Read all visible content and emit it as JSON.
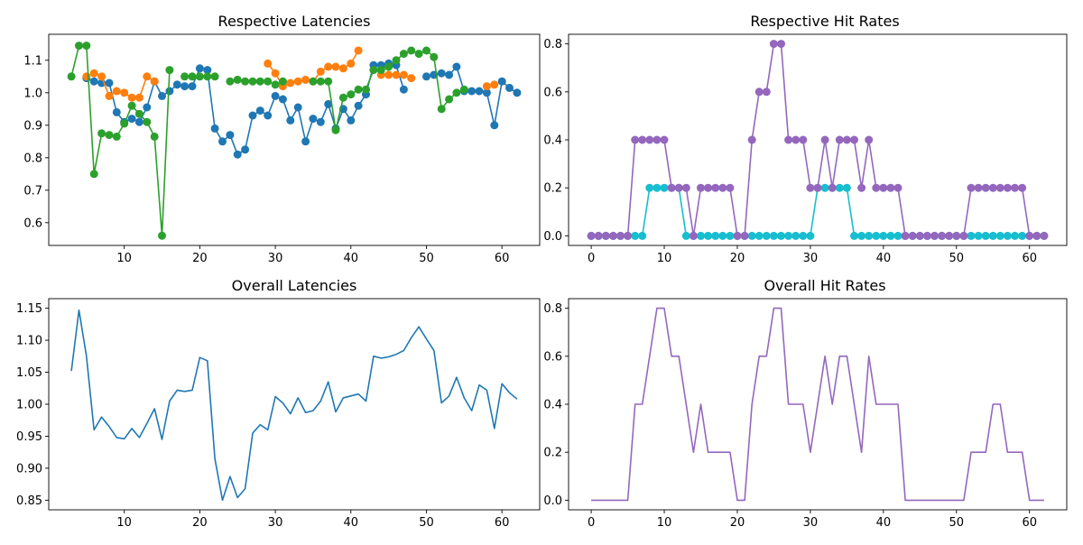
{
  "chart_data": [
    {
      "id": "respective-latencies",
      "type": "line",
      "title": "Respective Latencies",
      "xlim": [
        0,
        65
      ],
      "ylim": [
        0.53,
        1.18
      ],
      "xticks": [
        10,
        20,
        30,
        40,
        50,
        60
      ],
      "yticks": [
        0.6,
        0.7,
        0.8,
        0.9,
        1.0,
        1.1
      ],
      "ytick_labels": [
        "0.6",
        "0.7",
        "0.8",
        "0.9",
        "1.0",
        "1.1"
      ],
      "series": [
        {
          "color": "#1f77b4",
          "markers": true,
          "points": [
            [
              5,
              1.045
            ],
            [
              6,
              1.035
            ],
            [
              7,
              1.03
            ],
            [
              8,
              1.03
            ],
            [
              9,
              0.94
            ],
            [
              10,
              0.91
            ],
            [
              11,
              0.92
            ],
            [
              12,
              0.91
            ],
            [
              13,
              0.955
            ],
            [
              14,
              1.035
            ],
            [
              15,
              0.99
            ],
            [
              16,
              1.005
            ],
            [
              17,
              1.025
            ],
            [
              18,
              1.02
            ],
            [
              19,
              1.02
            ],
            [
              20,
              1.075
            ],
            [
              21,
              1.07
            ],
            [
              22,
              0.89
            ],
            [
              23,
              0.85
            ],
            [
              24,
              0.87
            ],
            [
              25,
              0.81
            ],
            [
              26,
              0.825
            ],
            [
              27,
              0.93
            ],
            [
              28,
              0.945
            ],
            [
              29,
              0.93
            ],
            [
              30,
              0.99
            ],
            [
              31,
              0.98
            ],
            [
              32,
              0.915
            ],
            [
              33,
              0.955
            ],
            [
              34,
              0.85
            ],
            [
              35,
              0.92
            ],
            [
              36,
              0.91
            ],
            [
              37,
              0.965
            ],
            [
              38,
              0.89
            ],
            [
              39,
              0.95
            ],
            [
              40,
              0.915
            ],
            [
              41,
              0.96
            ],
            [
              42,
              0.995
            ],
            [
              43,
              1.085
            ],
            [
              44,
              1.085
            ],
            [
              45,
              1.09
            ],
            [
              46,
              1.085
            ],
            [
              47,
              1.01
            ],
            null,
            [
              50,
              1.05
            ],
            [
              51,
              1.055
            ],
            [
              52,
              1.06
            ],
            [
              53,
              1.055
            ],
            [
              54,
              1.08
            ],
            [
              55,
              1.005
            ],
            [
              56,
              1.005
            ],
            [
              57,
              1.005
            ],
            [
              58,
              1.0
            ],
            [
              59,
              0.9
            ],
            [
              60,
              1.035
            ],
            [
              61,
              1.015
            ],
            [
              62,
              1.0
            ]
          ]
        },
        {
          "color": "#ff7f0e",
          "markers": true,
          "points": [
            [
              5,
              1.05
            ],
            [
              6,
              1.06
            ],
            [
              7,
              1.05
            ],
            [
              8,
              0.99
            ],
            [
              9,
              1.005
            ],
            [
              10,
              1.0
            ],
            [
              11,
              0.985
            ],
            [
              12,
              0.985
            ],
            [
              13,
              1.05
            ],
            [
              14,
              1.035
            ],
            null,
            [
              29,
              1.09
            ],
            [
              30,
              1.06
            ],
            [
              31,
              1.02
            ],
            [
              32,
              1.03
            ],
            [
              33,
              1.035
            ],
            [
              34,
              1.04
            ],
            [
              35,
              1.035
            ],
            [
              36,
              1.065
            ],
            [
              37,
              1.08
            ],
            [
              38,
              1.08
            ],
            [
              39,
              1.075
            ],
            [
              40,
              1.09
            ],
            [
              41,
              1.13
            ],
            null,
            [
              44,
              1.055
            ],
            [
              45,
              1.055
            ],
            [
              46,
              1.055
            ],
            [
              47,
              1.055
            ],
            [
              48,
              1.045
            ],
            null,
            [
              58,
              1.02
            ],
            [
              59,
              1.025
            ]
          ]
        },
        {
          "color": "#2ca02c",
          "markers": true,
          "points": [
            [
              3,
              1.05
            ],
            [
              4,
              1.145
            ],
            [
              5,
              1.145
            ],
            [
              6,
              0.75
            ],
            [
              7,
              0.875
            ],
            [
              8,
              0.87
            ],
            [
              9,
              0.865
            ],
            [
              10,
              0.905
            ],
            [
              11,
              0.96
            ],
            [
              12,
              0.935
            ],
            [
              13,
              0.91
            ],
            [
              14,
              0.865
            ],
            [
              15,
              0.56
            ],
            [
              16,
              1.07
            ],
            null,
            [
              18,
              1.05
            ],
            [
              19,
              1.05
            ],
            [
              20,
              1.05
            ],
            [
              21,
              1.05
            ],
            [
              22,
              1.05
            ],
            null,
            [
              24,
              1.035
            ],
            [
              25,
              1.04
            ],
            [
              26,
              1.035
            ],
            [
              27,
              1.035
            ],
            [
              28,
              1.035
            ],
            [
              29,
              1.035
            ],
            [
              30,
              1.025
            ],
            [
              31,
              1.035
            ],
            null,
            [
              35,
              1.035
            ],
            [
              36,
              1.035
            ],
            [
              37,
              1.035
            ],
            [
              38,
              0.885
            ],
            [
              39,
              0.985
            ],
            [
              40,
              0.995
            ],
            [
              41,
              1.01
            ],
            [
              42,
              1.01
            ],
            [
              43,
              1.07
            ],
            [
              44,
              1.07
            ],
            [
              45,
              1.08
            ],
            [
              46,
              1.1
            ],
            [
              47,
              1.12
            ],
            [
              48,
              1.13
            ],
            [
              49,
              1.12
            ],
            [
              50,
              1.13
            ],
            [
              51,
              1.11
            ],
            [
              52,
              0.95
            ],
            [
              53,
              0.98
            ],
            [
              54,
              1.0
            ],
            [
              55,
              1.01
            ]
          ]
        }
      ]
    },
    {
      "id": "respective-hit-rates",
      "type": "line",
      "title": "Respective Hit Rates",
      "xlim": [
        -3.1,
        65.1
      ],
      "ylim": [
        -0.04,
        0.84
      ],
      "xticks": [
        0,
        10,
        20,
        30,
        40,
        50,
        60
      ],
      "yticks": [
        0.0,
        0.2,
        0.4,
        0.6,
        0.8
      ],
      "ytick_labels": [
        "0.0",
        "0.2",
        "0.4",
        "0.6",
        "0.8"
      ],
      "series": [
        {
          "color": "#17becf",
          "markers": true,
          "values": [
            0,
            0,
            0,
            0,
            0,
            0,
            0,
            0,
            0.2,
            0.2,
            0.2,
            0.2,
            0.2,
            0,
            0,
            0,
            0,
            0,
            0,
            0,
            0,
            0,
            0,
            0,
            0,
            0,
            0,
            0,
            0,
            0,
            0,
            0.2,
            0.2,
            0.2,
            0.2,
            0.2,
            0,
            0,
            0,
            0,
            0,
            0,
            0,
            0,
            0,
            0,
            0,
            0,
            0,
            0,
            0,
            0,
            0,
            0,
            0,
            0,
            0,
            0,
            0,
            0,
            0,
            0,
            0
          ]
        },
        {
          "color": "#9467bd",
          "markers": true,
          "values": [
            0,
            0,
            0,
            0,
            0,
            0,
            0.4,
            0.4,
            0.4,
            0.4,
            0.4,
            0.2,
            0.2,
            0.2,
            0,
            0.2,
            0.2,
            0.2,
            0.2,
            0.2,
            0,
            0,
            0.4,
            0.6,
            0.6,
            0.8,
            0.8,
            0.4,
            0.4,
            0.4,
            0.2,
            0.2,
            0.4,
            0.2,
            0.4,
            0.4,
            0.4,
            0.2,
            0.4,
            0.2,
            0.2,
            0.2,
            0.2,
            0,
            0,
            0,
            0,
            0,
            0,
            0,
            0,
            0,
            0.2,
            0.2,
            0.2,
            0.2,
            0.2,
            0.2,
            0.2,
            0.2,
            0,
            0,
            0
          ]
        }
      ]
    },
    {
      "id": "overall-latencies",
      "type": "line",
      "title": "Overall Latencies",
      "xlim": [
        0,
        65
      ],
      "ylim": [
        0.835,
        1.165
      ],
      "xticks": [
        10,
        20,
        30,
        40,
        50,
        60
      ],
      "yticks": [
        0.85,
        0.9,
        0.95,
        1.0,
        1.05,
        1.1,
        1.15
      ],
      "ytick_labels": [
        "0.85",
        "0.90",
        "0.95",
        "1.00",
        "1.05",
        "1.10",
        "1.15"
      ],
      "series": [
        {
          "color": "#1f77b4",
          "markers": false,
          "points": [
            [
              3,
              1.052
            ],
            [
              4,
              1.147
            ],
            [
              5,
              1.075
            ],
            [
              6,
              0.96
            ],
            [
              7,
              0.98
            ],
            [
              8,
              0.965
            ],
            [
              9,
              0.948
            ],
            [
              10,
              0.946
            ],
            [
              11,
              0.962
            ],
            [
              12,
              0.948
            ],
            [
              13,
              0.97
            ],
            [
              14,
              0.993
            ],
            [
              15,
              0.945
            ],
            [
              16,
              1.005
            ],
            [
              17,
              1.022
            ],
            [
              18,
              1.02
            ],
            [
              19,
              1.022
            ],
            [
              20,
              1.073
            ],
            [
              21,
              1.068
            ],
            [
              22,
              0.915
            ],
            [
              23,
              0.85
            ],
            [
              24,
              0.887
            ],
            [
              25,
              0.854
            ],
            [
              26,
              0.868
            ],
            [
              27,
              0.955
            ],
            [
              28,
              0.968
            ],
            [
              29,
              0.96
            ],
            [
              30,
              1.012
            ],
            [
              31,
              1.002
            ],
            [
              32,
              0.985
            ],
            [
              33,
              1.01
            ],
            [
              34,
              0.987
            ],
            [
              35,
              0.99
            ],
            [
              36,
              1.005
            ],
            [
              37,
              1.035
            ],
            [
              38,
              0.988
            ],
            [
              39,
              1.01
            ],
            [
              40,
              1.013
            ],
            [
              41,
              1.016
            ],
            [
              42,
              1.005
            ],
            [
              43,
              1.075
            ],
            [
              44,
              1.072
            ],
            [
              45,
              1.074
            ],
            [
              46,
              1.078
            ],
            [
              47,
              1.084
            ],
            [
              48,
              1.104
            ],
            [
              49,
              1.121
            ],
            [
              50,
              1.102
            ],
            [
              51,
              1.084
            ],
            [
              52,
              1.002
            ],
            [
              53,
              1.013
            ],
            [
              54,
              1.042
            ],
            [
              55,
              1.01
            ],
            [
              56,
              0.99
            ],
            [
              57,
              1.03
            ],
            [
              58,
              1.022
            ],
            [
              59,
              0.962
            ],
            [
              60,
              1.032
            ],
            [
              61,
              1.018
            ],
            [
              62,
              1.008
            ]
          ]
        }
      ]
    },
    {
      "id": "overall-hit-rates",
      "type": "line",
      "title": "Overall Hit Rates",
      "xlim": [
        -3.1,
        65.1
      ],
      "ylim": [
        -0.04,
        0.84
      ],
      "xticks": [
        0,
        10,
        20,
        30,
        40,
        50,
        60
      ],
      "yticks": [
        0.0,
        0.2,
        0.4,
        0.6,
        0.8
      ],
      "ytick_labels": [
        "0.0",
        "0.2",
        "0.4",
        "0.6",
        "0.8"
      ],
      "series": [
        {
          "color": "#9467bd",
          "markers": false,
          "values": [
            0,
            0,
            0,
            0,
            0,
            0,
            0.4,
            0.4,
            0.6,
            0.8,
            0.8,
            0.6,
            0.6,
            0.4,
            0.2,
            0.4,
            0.2,
            0.2,
            0.2,
            0.2,
            0,
            0,
            0.4,
            0.6,
            0.6,
            0.8,
            0.8,
            0.4,
            0.4,
            0.4,
            0.2,
            0.4,
            0.6,
            0.4,
            0.6,
            0.6,
            0.4,
            0.2,
            0.6,
            0.4,
            0.4,
            0.4,
            0.4,
            0,
            0,
            0,
            0,
            0,
            0,
            0,
            0,
            0,
            0.2,
            0.2,
            0.2,
            0.4,
            0.4,
            0.2,
            0.2,
            0.2,
            0,
            0,
            0
          ]
        }
      ]
    }
  ]
}
